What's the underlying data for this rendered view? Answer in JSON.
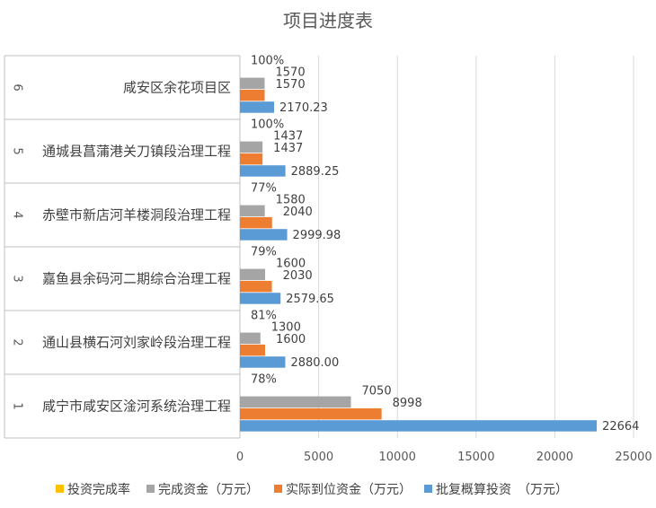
{
  "chart_data": {
    "type": "bar",
    "orientation": "horizontal",
    "title": "项目进度表",
    "xlim": [
      0,
      25000
    ],
    "xticks": [
      "0",
      "5000",
      "10000",
      "15000",
      "20000",
      "25000"
    ],
    "grid": true,
    "legend_position": "bottom",
    "categories": [
      {
        "index": "6",
        "name": "咸安区余花项目区"
      },
      {
        "index": "5",
        "name": "通城县菖蒲港关刀镇段治理工程"
      },
      {
        "index": "4",
        "name": "赤壁市新店河羊楼洞段治理工程"
      },
      {
        "index": "3",
        "name": "嘉鱼县余码河二期综合治理工程"
      },
      {
        "index": "2",
        "name": "通山县横石河刘家岭段治理工程"
      },
      {
        "index": "1",
        "name": "咸宁市咸安区淦河系统治理工程"
      }
    ],
    "series": [
      {
        "name": "投资完成率",
        "color": "#FFC000",
        "values": [
          1.0,
          1.0,
          0.77,
          0.79,
          0.81,
          0.78
        ],
        "labels": [
          "100%",
          "100%",
          "77%",
          "79%",
          "81%",
          "78%"
        ]
      },
      {
        "name": "完成资金（万元）",
        "color": "#A5A5A5",
        "values": [
          1570,
          1437,
          1580,
          1600,
          1300,
          7050
        ],
        "labels": [
          "1570",
          "1437",
          "1580",
          "1600",
          "1300",
          "7050"
        ]
      },
      {
        "name": "实际到位资金（万元）",
        "color": "#ED7D31",
        "values": [
          1570,
          1437,
          2040,
          2030,
          1600,
          8998
        ],
        "labels": [
          "1570",
          "1437",
          "2040",
          "2030",
          "1600",
          "8998"
        ]
      },
      {
        "name": "批复概算投资　（万元）",
        "color": "#5B9BD5",
        "values": [
          2170.23,
          2889.25,
          2999.98,
          2579.65,
          2880.0,
          22664
        ],
        "labels": [
          "2170.23",
          "2889.25",
          "2999.98",
          "2579.65",
          "2880.00",
          "22664"
        ]
      }
    ]
  }
}
